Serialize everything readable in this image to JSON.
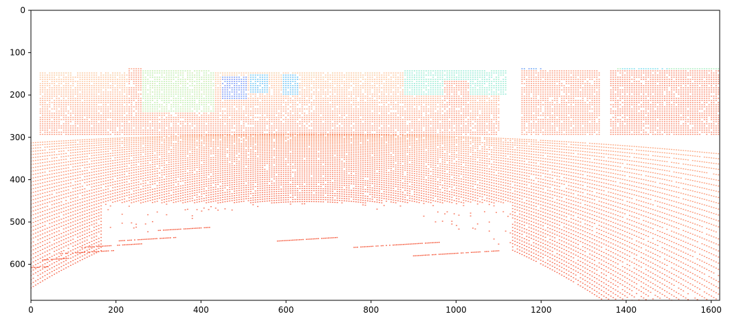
{
  "chart_data": {
    "type": "scatter",
    "title": "",
    "xlabel": "",
    "ylabel": "",
    "xlim": [
      0,
      1620
    ],
    "ylim": [
      685,
      0
    ],
    "y_inverted": true,
    "grid": false,
    "x_ticks": [
      0,
      200,
      400,
      600,
      800,
      1000,
      1200,
      1400,
      1600
    ],
    "y_ticks": [
      0,
      100,
      200,
      300,
      400,
      500,
      600
    ],
    "x_tick_labels": [
      "0",
      "200",
      "400",
      "600",
      "800",
      "1000",
      "1200",
      "1400",
      "1600"
    ],
    "y_tick_labels": [
      "0",
      "100",
      "200",
      "300",
      "400",
      "500",
      "600"
    ],
    "colormap": "rainbow",
    "near_color": "#f44a2a",
    "mid_color": "#fdb27a",
    "far_color": "#7ee6b0",
    "farthest_color": "#5a48f0",
    "scan_rings": {
      "count": 46,
      "bottom_y_at_center": [
        452,
        675
      ],
      "top_y_at_center": [
        145,
        290
      ]
    },
    "background_regions": [
      {
        "x": [
          20,
          1100
        ],
        "y": [
          140,
          300
        ],
        "tone": 0.68
      },
      {
        "x": [
          1380,
          1620
        ],
        "y": [
          120,
          200
        ],
        "tone": 0.5
      }
    ],
    "color_patches": [
      {
        "x": [
          450,
          510
        ],
        "y": [
          155,
          210
        ],
        "tone": 0.08
      },
      {
        "x": [
          515,
          560
        ],
        "y": [
          150,
          195
        ],
        "tone": 0.22
      },
      {
        "x": [
          590,
          630
        ],
        "y": [
          150,
          200
        ],
        "tone": 0.22
      },
      {
        "x": [
          880,
          1120
        ],
        "y": [
          140,
          200
        ],
        "tone": 0.42
      },
      {
        "x": [
          240,
          430
        ],
        "y": [
          140,
          240
        ],
        "tone": 0.58
      },
      {
        "x": [
          1150,
          1200
        ],
        "y": [
          138,
          155
        ],
        "tone": 0.12
      },
      {
        "x": [
          1390,
          1500
        ],
        "y": [
          125,
          150
        ],
        "tone": 0.32
      }
    ],
    "obstacles": [
      {
        "x": [
          1360,
          1620
        ],
        "y": [
          140,
          320
        ],
        "tone": 0.92
      },
      {
        "x": [
          1150,
          1340
        ],
        "y": [
          140,
          300
        ],
        "tone": 0.86
      },
      {
        "x": [
          970,
          1030
        ],
        "y": [
          165,
          300
        ],
        "tone": 0.88
      },
      {
        "x": [
          230,
          260
        ],
        "y": [
          130,
          300
        ],
        "tone": 0.86
      }
    ]
  }
}
